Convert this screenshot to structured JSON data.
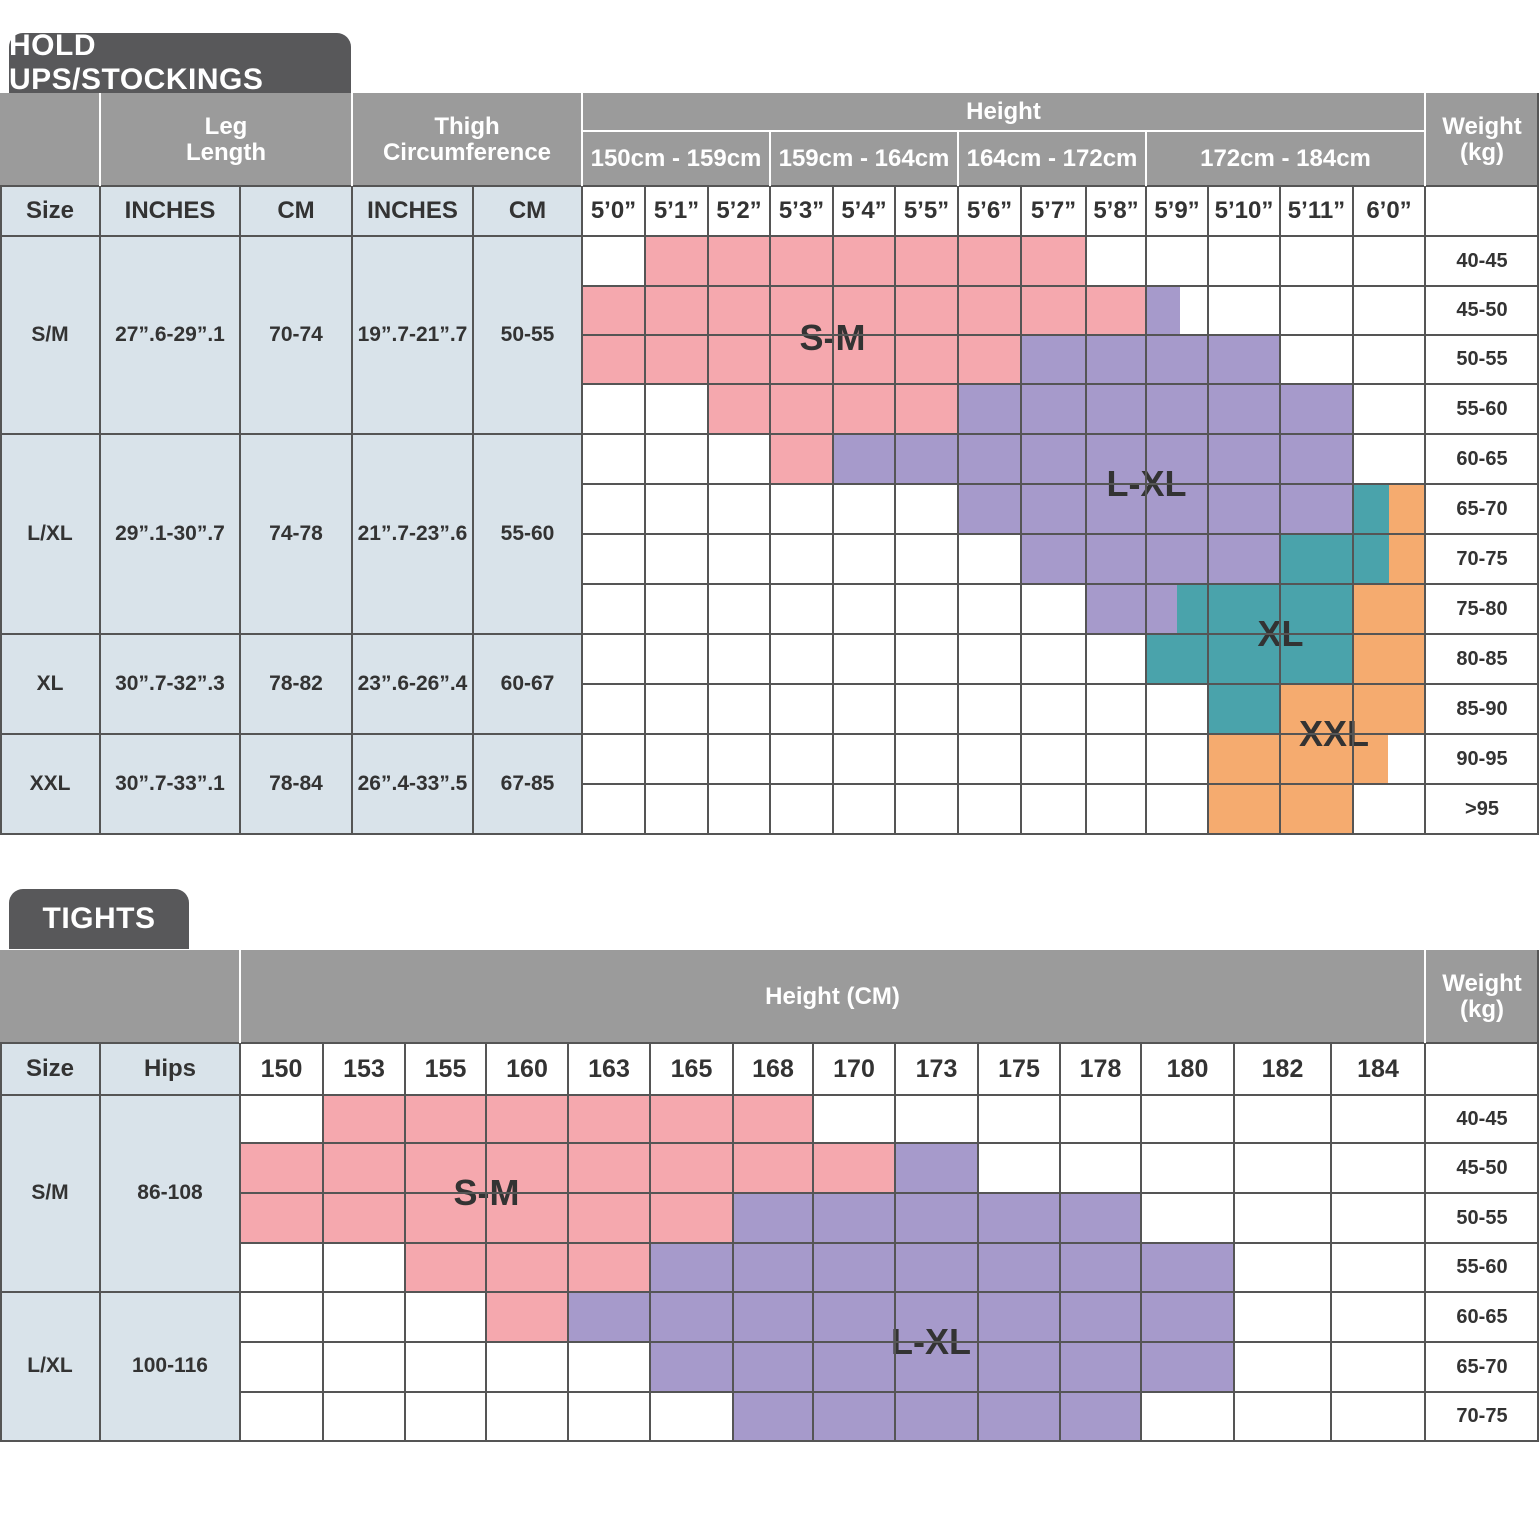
{
  "colors": {
    "sm": "#f5a8ae",
    "lxl": "#a69acb",
    "xl": "#4aa3ab",
    "xxl": "#f5ab6f",
    "header": "#9b9b9b",
    "label": "#d9e3ea",
    "tab": "#58585a",
    "grid": "#555555"
  },
  "hold_ups": {
    "title": "HOLD UPS/STOCKINGS",
    "col_leg_length": "Leg\nLength",
    "col_thigh": "Thigh\nCircumference",
    "col_height": "Height",
    "col_weight": "Weight\n(kg)",
    "height_groups": [
      "150cm - 159cm",
      "159cm - 164cm",
      "164cm - 172cm",
      "172cm - 184cm"
    ],
    "sub_headers": [
      "Size",
      "INCHES",
      "CM",
      "INCHES",
      "CM"
    ],
    "heights": [
      "5’0”",
      "5’1”",
      "5’2”",
      "5’3”",
      "5’4”",
      "5’5”",
      "5’6”",
      "5’7”",
      "5’8”",
      "5’9”",
      "5’10”",
      "5’11”",
      "6’0”"
    ],
    "weights": [
      "40-45",
      "45-50",
      "50-55",
      "55-60",
      "60-65",
      "65-70",
      "70-75",
      "75-80",
      "80-85",
      "85-90",
      "90-95",
      ">95"
    ],
    "sizes": [
      {
        "size": "S/M",
        "leg_in": "27”.6-29”.1",
        "leg_cm": "70-74",
        "thigh_in": "19”.7-21”.7",
        "thigh_cm": "50-55"
      },
      {
        "size": "L/XL",
        "leg_in": "29”.1-30”.7",
        "leg_cm": "74-78",
        "thigh_in": "21”.7-23”.6",
        "thigh_cm": "55-60"
      },
      {
        "size": "XL",
        "leg_in": "30”.7-32”.3",
        "leg_cm": "78-82",
        "thigh_in": "23”.6-26”.4",
        "thigh_cm": "60-67"
      },
      {
        "size": "XXL",
        "leg_in": "30”.7-33”.1",
        "leg_cm": "78-84",
        "thigh_in": "26”.4-33”.5",
        "thigh_cm": "67-85"
      }
    ],
    "zone_labels": {
      "sm": "S-M",
      "lxl": "L-XL",
      "xl": "XL",
      "xxl": "XXL"
    }
  },
  "tights": {
    "title": "TIGHTS",
    "col_height": "Height (CM)",
    "col_weight": "Weight\n(kg)",
    "sub_headers": [
      "Size",
      "Hips"
    ],
    "heights": [
      "150",
      "153",
      "155",
      "160",
      "163",
      "165",
      "168",
      "170",
      "173",
      "175",
      "178",
      "180",
      "182",
      "184"
    ],
    "weights": [
      "40-45",
      "45-50",
      "50-55",
      "55-60",
      "60-65",
      "65-70",
      "70-75"
    ],
    "sizes": [
      {
        "size": "S/M",
        "hips": "86-108"
      },
      {
        "size": "L/XL",
        "hips": "100-116"
      }
    ],
    "zone_labels": {
      "sm": "S-M",
      "lxl": "L-XL"
    }
  }
}
